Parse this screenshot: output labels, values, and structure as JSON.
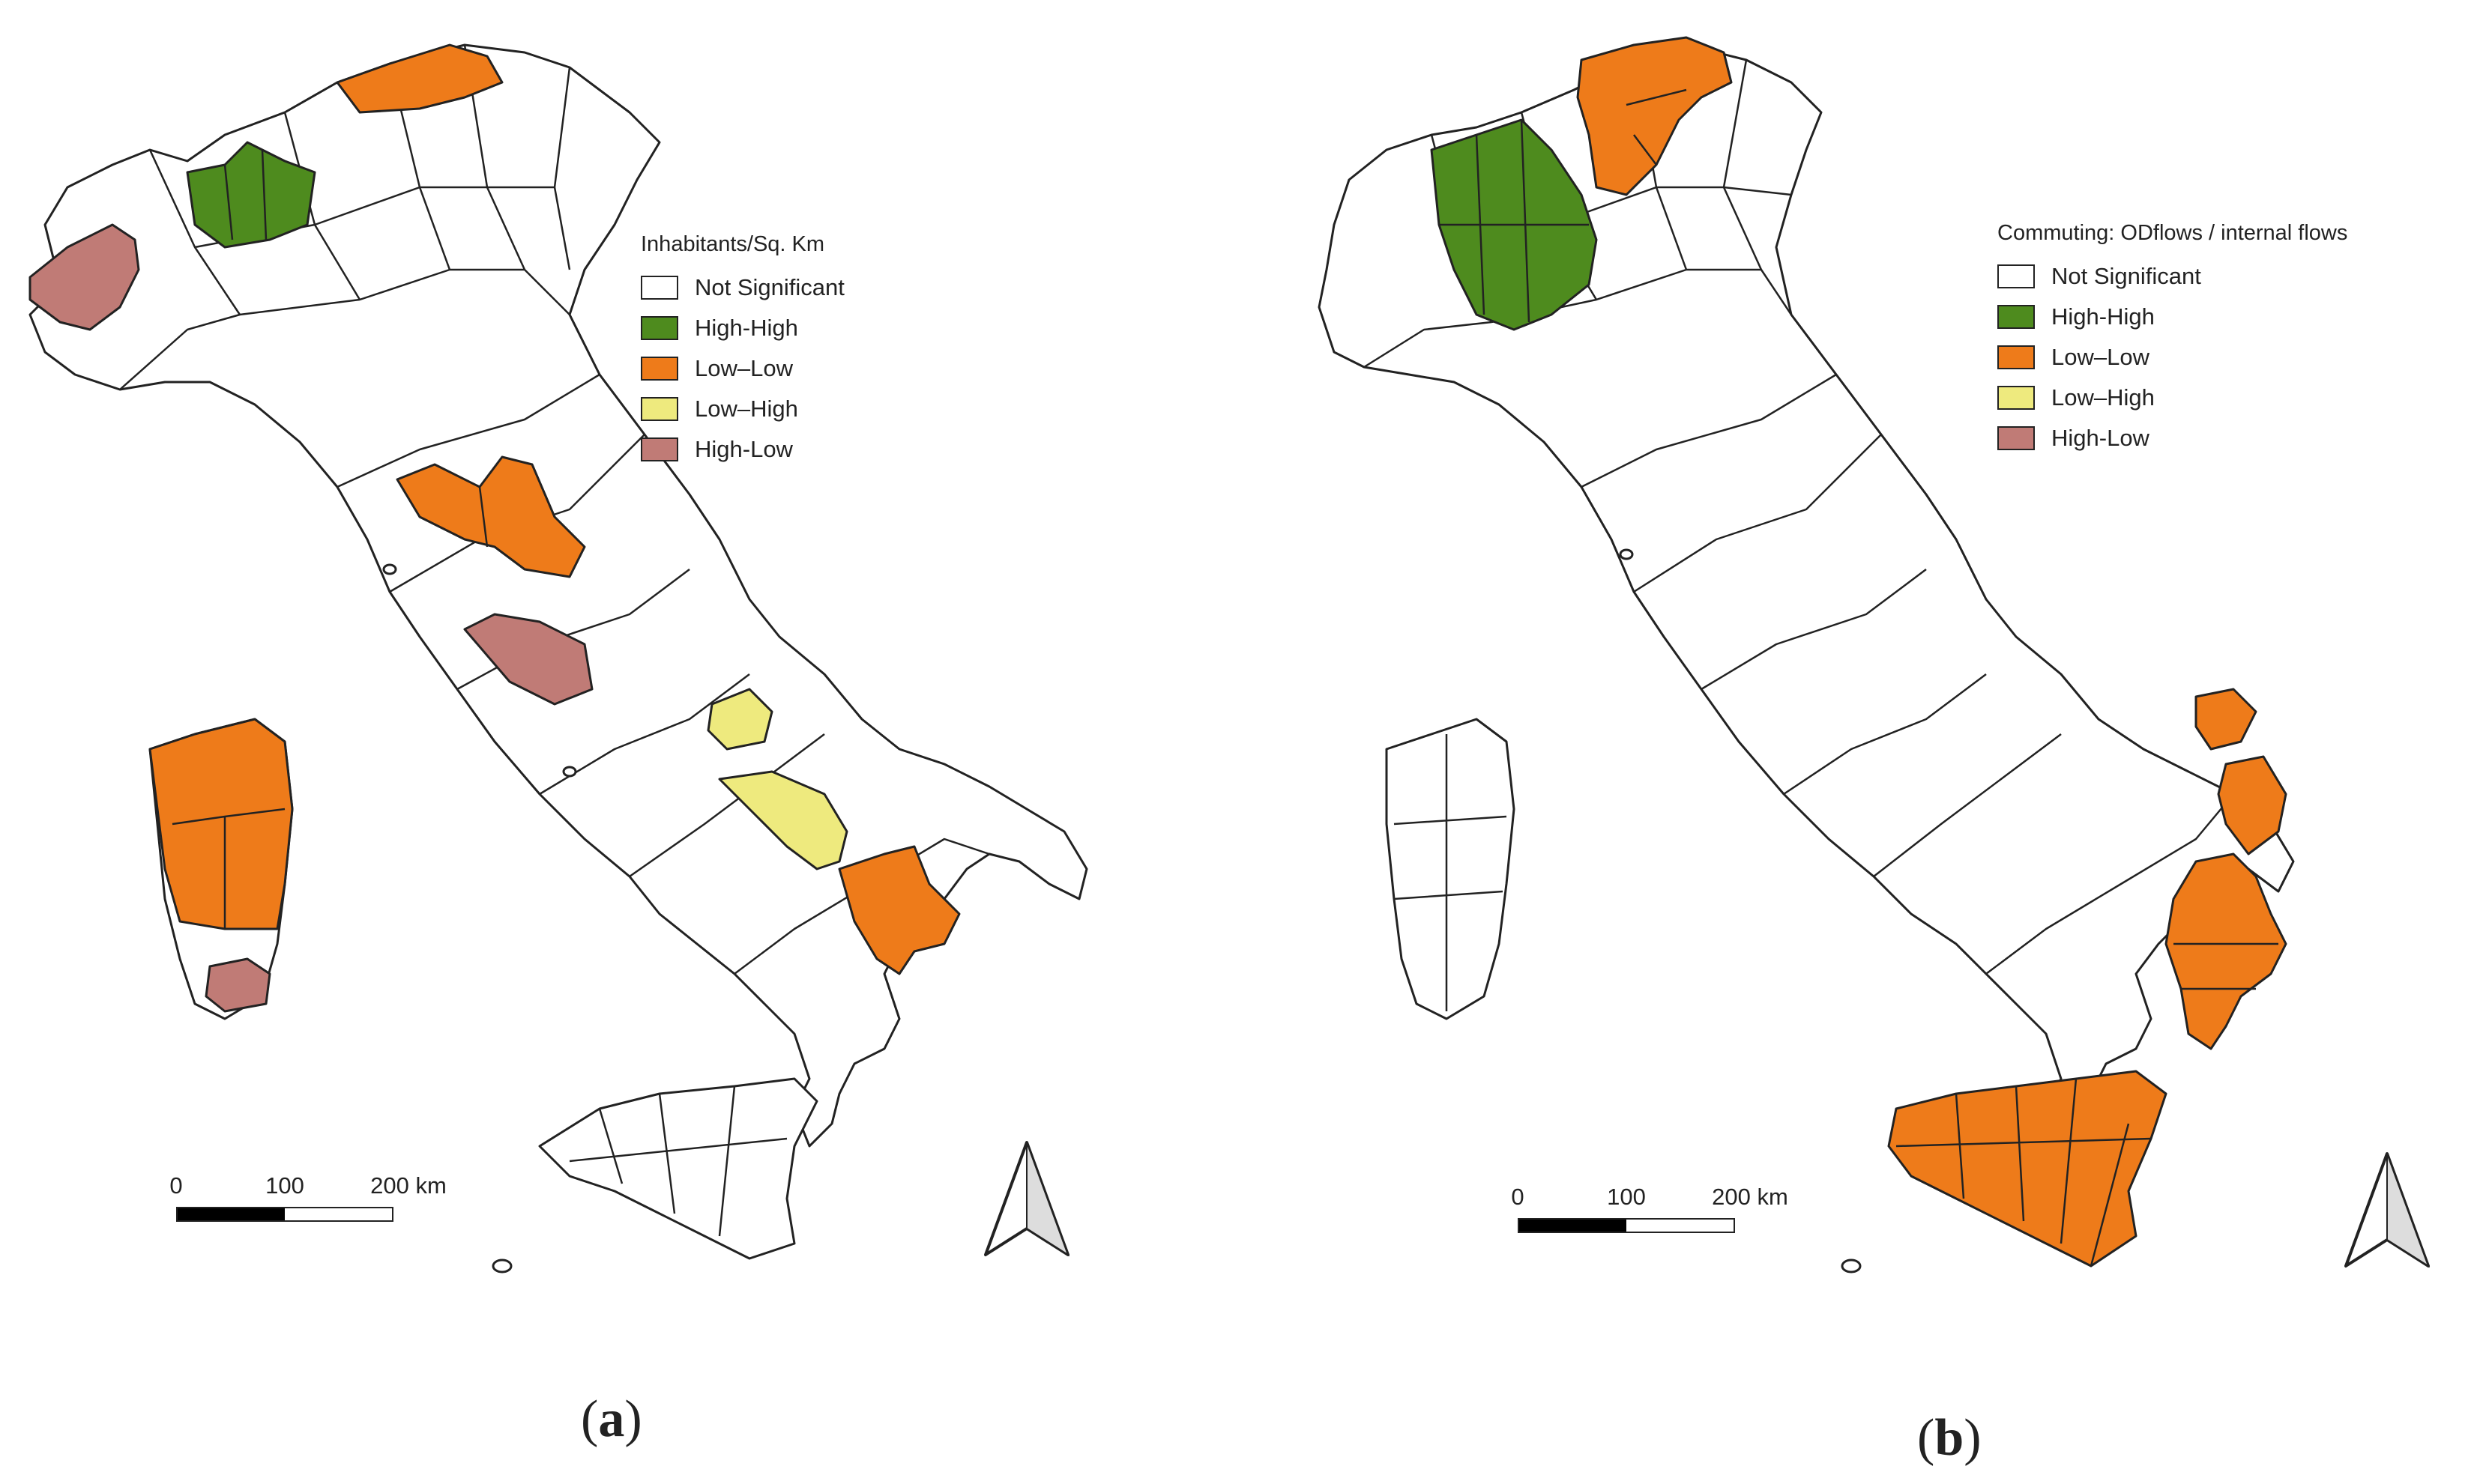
{
  "colors": {
    "not_significant": "#ffffff",
    "high_high": "#4e8b1e",
    "low_low": "#ee7b1a",
    "low_high": "#eeea7e",
    "high_low": "#c07b76",
    "outline": "#222222"
  },
  "panels": [
    {
      "label_open": "(",
      "label_letter": "a",
      "label_close": ")",
      "legend": {
        "title": "Inhabitants/Sq. Km",
        "items": [
          {
            "label": "Not Significant",
            "class": "not_significant"
          },
          {
            "label": "High-High",
            "class": "high_high"
          },
          {
            "label": "Low–Low",
            "class": "low_low"
          },
          {
            "label": "Low–High",
            "class": "low_high"
          },
          {
            "label": "High-Low",
            "class": "high_low"
          }
        ]
      },
      "scale": {
        "ticks": [
          "0",
          "100",
          "200 km"
        ]
      },
      "north_arrow": "north-arrow-icon"
    },
    {
      "label_open": "(",
      "label_letter": "b",
      "label_close": ")",
      "legend": {
        "title": "Commuting: ODflows / internal flows",
        "items": [
          {
            "label": "Not Significant",
            "class": "not_significant"
          },
          {
            "label": "High-High",
            "class": "high_high"
          },
          {
            "label": "Low–Low",
            "class": "low_low"
          },
          {
            "label": "Low–High",
            "class": "low_high"
          },
          {
            "label": "High-Low",
            "class": "high_low"
          }
        ]
      },
      "scale": {
        "ticks": [
          "0",
          "100",
          "200 km"
        ]
      },
      "north_arrow": "north-arrow-icon"
    }
  ]
}
